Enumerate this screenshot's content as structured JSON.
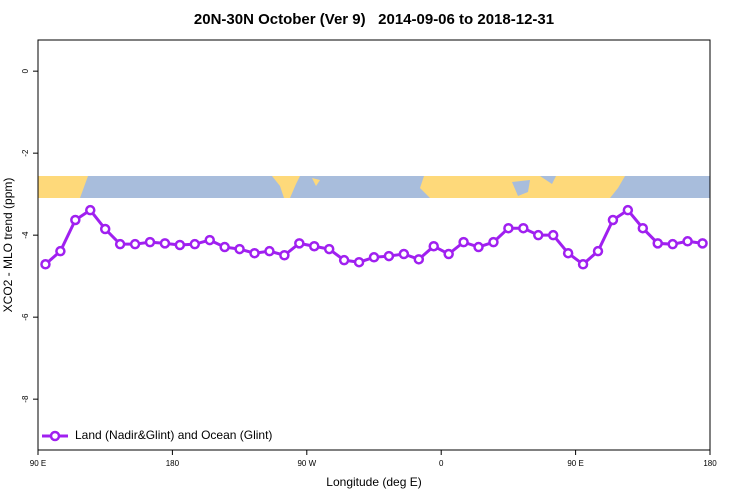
{
  "chart_data": {
    "type": "line",
    "title": "20N-30N October (Ver 9)   2014-09-06 to 2018-12-31",
    "xlabel": "Longitude (deg E)",
    "ylabel": "XCO2 - MLO trend (ppm)",
    "xlim": [
      90,
      540
    ],
    "xticks": [
      {
        "value": 90,
        "label": "90 E"
      },
      {
        "value": 180,
        "label": "180"
      },
      {
        "value": 270,
        "label": "90 W"
      },
      {
        "value": 360,
        "label": "0"
      },
      {
        "value": 450,
        "label": "90 E"
      },
      {
        "value": 540,
        "label": "180"
      }
    ],
    "ylim": [
      -9.24,
      0.76
    ],
    "yticks": [
      0,
      -2,
      -4,
      -6,
      -8
    ],
    "legend": "bottom-left",
    "x": [
      95,
      105,
      115,
      125,
      135,
      145,
      155,
      165,
      175,
      185,
      195,
      205,
      215,
      225,
      235,
      245,
      255,
      265,
      275,
      285,
      295,
      305,
      315,
      325,
      335,
      345,
      355,
      365,
      375,
      385,
      395,
      405,
      415,
      425,
      435,
      445,
      455,
      465,
      475,
      485,
      495,
      505,
      515,
      525,
      535
    ],
    "series": [
      {
        "name": "Land (Nadir&Glint) and Ocean (Glint)",
        "color": "#a020f0",
        "values": [
          -4.71,
          -4.39,
          -3.63,
          -3.39,
          -3.85,
          -4.22,
          -4.22,
          -4.17,
          -4.2,
          -4.24,
          -4.22,
          -4.12,
          -4.29,
          -4.34,
          -4.44,
          -4.39,
          -4.49,
          -4.2,
          -4.27,
          -4.34,
          -4.61,
          -4.66,
          -4.54,
          -4.51,
          -4.46,
          -4.59,
          -4.27,
          -4.46,
          -4.17,
          -4.29,
          -4.17,
          -3.83,
          -3.83,
          -4.0,
          -4.0,
          -4.44,
          -4.71,
          -4.39,
          -3.63,
          -3.39,
          -3.83,
          -4.2,
          -4.22,
          -4.15,
          -4.2
        ]
      }
    ]
  }
}
